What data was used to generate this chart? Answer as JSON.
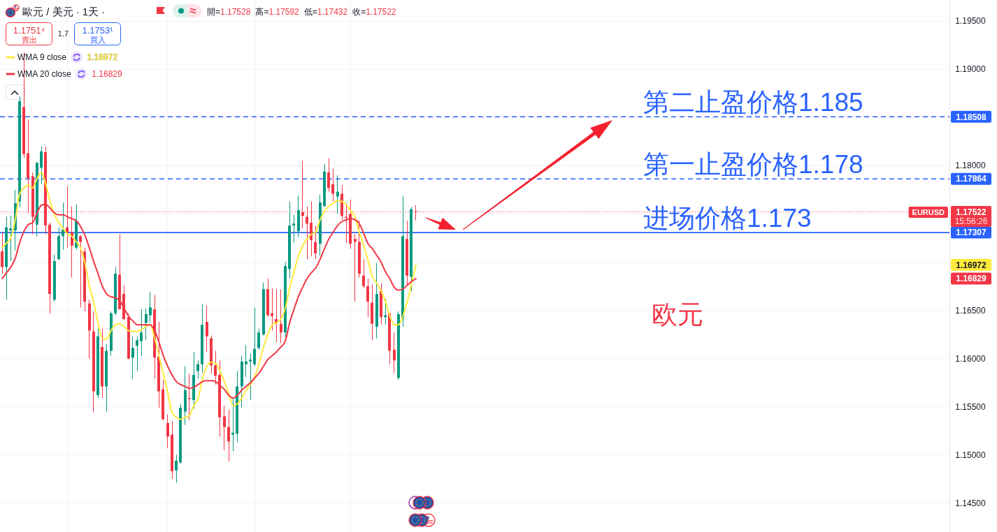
{
  "chart_data": {
    "type": "candlestick",
    "title": "歐元 / 美元 · 1天 ·",
    "categories": [
      null,
      null,
      null,
      null,
      null,
      null,
      null,
      null,
      null,
      null,
      null,
      null,
      null,
      null,
      null,
      null,
      null,
      null,
      null,
      null,
      null,
      null,
      null,
      null,
      null,
      null,
      null,
      null,
      null,
      null,
      null,
      null,
      null,
      null,
      null,
      null,
      null,
      null,
      null,
      null,
      null,
      null,
      null,
      null,
      null,
      null,
      null,
      null,
      null,
      null,
      null,
      null,
      null,
      null,
      null,
      null,
      null,
      null,
      null,
      null,
      null,
      null,
      null,
      null,
      null,
      null,
      null,
      null,
      null,
      null,
      null,
      null,
      null,
      null,
      null,
      null,
      null,
      null,
      null,
      null,
      null,
      null,
      null,
      null,
      null,
      null,
      null,
      null,
      null,
      null,
      null,
      null,
      null,
      null,
      null,
      null,
      null,
      null,
      null,
      null,
      null,
      null,
      null,
      null,
      null,
      null,
      null,
      null,
      null,
      null,
      null,
      null,
      null,
      null,
      null,
      null,
      null,
      null,
      null,
      null,
      null,
      null,
      null,
      null,
      null,
      null,
      null,
      null,
      null,
      null,
      null,
      null,
      null,
      null,
      null,
      null,
      null,
      null,
      null,
      null,
      null,
      null,
      null,
      null,
      null,
      null,
      null,
      null,
      null,
      null,
      null,
      null,
      null,
      null,
      null,
      null,
      null,
      null,
      null,
      null,
      null,
      null,
      null,
      null,
      null,
      null,
      null,
      null,
      null,
      null,
      null,
      null,
      null,
      null,
      null,
      null,
      null,
      null,
      null,
      null,
      null,
      null,
      null,
      null,
      null,
      null,
      null,
      null,
      null,
      null,
      null,
      null,
      null,
      null,
      null,
      null,
      null,
      null,
      null,
      null,
      null,
      null,
      null,
      null,
      null,
      null,
      null,
      null,
      null,
      null,
      null,
      null,
      null,
      null,
      null,
      null,
      null,
      null
    ],
    "ohlc": [
      [
        1.1711,
        1.1731,
        1.1688,
        1.1695
      ],
      [
        1.1695,
        1.1747,
        1.1661,
        1.1736
      ],
      [
        1.1733,
        1.1748,
        1.1701,
        1.1735
      ],
      [
        1.1733,
        1.1775,
        1.1712,
        1.1761
      ],
      [
        1.1763,
        1.1872,
        1.1757,
        1.1867
      ],
      [
        1.1861,
        1.1918,
        1.1808,
        1.1812
      ],
      [
        1.1813,
        1.1848,
        1.1751,
        1.1787
      ],
      [
        1.1789,
        1.1793,
        1.1729,
        1.1747
      ],
      [
        1.1739,
        1.1804,
        1.1727,
        1.1803
      ],
      [
        1.1798,
        1.182,
        1.1781,
        1.1815
      ],
      [
        1.1814,
        1.182,
        1.1729,
        1.1738
      ],
      [
        1.1739,
        1.1741,
        1.1647,
        1.1667
      ],
      [
        1.1661,
        1.1708,
        1.1659,
        1.1701
      ],
      [
        1.1703,
        1.1736,
        1.1702,
        1.1727
      ],
      [
        1.1727,
        1.1762,
        1.1713,
        1.1734
      ],
      [
        1.1736,
        1.1779,
        1.1715,
        1.1731
      ],
      [
        1.1731,
        1.1758,
        1.1684,
        1.1717
      ],
      [
        1.1715,
        1.176,
        1.1713,
        1.1743
      ],
      [
        1.1727,
        1.1728,
        1.1653,
        1.1721
      ],
      [
        1.1711,
        1.1715,
        1.1649,
        1.1659
      ],
      [
        1.1657,
        1.1661,
        1.16,
        1.1629
      ],
      [
        1.1628,
        1.1649,
        1.1544,
        1.1566
      ],
      [
        1.1562,
        1.1631,
        1.1559,
        1.1623
      ],
      [
        1.1612,
        1.1631,
        1.1559,
        1.1571
      ],
      [
        1.1571,
        1.1615,
        1.1545,
        1.1608
      ],
      [
        1.1608,
        1.1649,
        1.1603,
        1.1647
      ],
      [
        1.1647,
        1.1695,
        1.1645,
        1.1688
      ],
      [
        1.1687,
        1.1729,
        1.1651,
        1.1651
      ],
      [
        1.1667,
        1.1676,
        1.164,
        1.1641
      ],
      [
        1.1643,
        1.1647,
        1.1599,
        1.16
      ],
      [
        1.1601,
        1.1623,
        1.1579,
        1.1611
      ],
      [
        1.1613,
        1.1623,
        1.1587,
        1.1619
      ],
      [
        1.1618,
        1.1651,
        1.1603,
        1.1627
      ],
      [
        1.1637,
        1.1652,
        1.1619,
        1.1646
      ],
      [
        1.1645,
        1.1669,
        1.1637,
        1.1653
      ],
      [
        1.1651,
        1.1666,
        1.1579,
        1.1601
      ],
      [
        1.1602,
        1.1638,
        1.1549,
        1.1566
      ],
      [
        1.1568,
        1.1578,
        1.1536,
        1.1537
      ],
      [
        1.1533,
        1.1542,
        1.1507,
        1.1519
      ],
      [
        1.1521,
        1.1535,
        1.1475,
        1.1483
      ],
      [
        1.1484,
        1.15,
        1.1471,
        1.1494
      ],
      [
        1.1492,
        1.1553,
        1.1491,
        1.1549
      ],
      [
        1.1545,
        1.1592,
        1.1531,
        1.1567
      ],
      [
        1.1559,
        1.1584,
        1.1536,
        1.1558
      ],
      [
        1.1557,
        1.1607,
        1.1548,
        1.1583
      ],
      [
        1.1587,
        1.1598,
        1.1579,
        1.1594
      ],
      [
        1.1594,
        1.1657,
        1.1585,
        1.1635
      ],
      [
        1.1638,
        1.1655,
        1.1607,
        1.1623
      ],
      [
        1.1621,
        1.1624,
        1.1584,
        1.1593
      ],
      [
        1.1593,
        1.1608,
        1.1573,
        1.1582
      ],
      [
        1.1583,
        1.1598,
        1.1519,
        1.1539
      ],
      [
        1.154,
        1.1551,
        1.1505,
        1.1529
      ],
      [
        1.1529,
        1.1547,
        1.1493,
        1.1514
      ],
      [
        1.1521,
        1.1559,
        1.1504,
        1.1523
      ],
      [
        1.1522,
        1.1587,
        1.1513,
        1.1571
      ],
      [
        1.1571,
        1.1603,
        1.1549,
        1.1597
      ],
      [
        1.1594,
        1.1614,
        1.1581,
        1.1597
      ],
      [
        1.1597,
        1.1605,
        1.1557,
        1.1599
      ],
      [
        1.1594,
        1.1653,
        1.1592,
        1.161
      ],
      [
        1.1611,
        1.1631,
        1.1609,
        1.1627
      ],
      [
        1.1625,
        1.1679,
        1.1624,
        1.1672
      ],
      [
        1.1672,
        1.1683,
        1.1643,
        1.1645
      ],
      [
        1.1647,
        1.1673,
        1.1629,
        1.1644
      ],
      [
        1.1641,
        1.1672,
        1.1617,
        1.1637
      ],
      [
        1.1636,
        1.1672,
        1.1616,
        1.1627
      ],
      [
        1.1627,
        1.17,
        1.1622,
        1.1696
      ],
      [
        1.1693,
        1.1763,
        1.1683,
        1.1738
      ],
      [
        1.1738,
        1.1749,
        1.172,
        1.174
      ],
      [
        1.1732,
        1.1769,
        1.1726,
        1.1754
      ],
      [
        1.1752,
        1.1805,
        1.1735,
        1.1748
      ],
      [
        1.1747,
        1.1758,
        1.1703,
        1.174
      ],
      [
        1.1741,
        1.1763,
        1.1706,
        1.1723
      ],
      [
        1.1721,
        1.1738,
        1.1703,
        1.1709
      ],
      [
        1.1719,
        1.177,
        1.1707,
        1.1762
      ],
      [
        1.1758,
        1.1802,
        1.1758,
        1.1794
      ],
      [
        1.1793,
        1.1808,
        1.1773,
        1.1777
      ],
      [
        1.1781,
        1.1797,
        1.1763,
        1.1771
      ],
      [
        1.1768,
        1.179,
        1.175,
        1.1773
      ],
      [
        1.1771,
        1.178,
        1.1744,
        1.1748
      ],
      [
        1.1747,
        1.176,
        1.172,
        1.1746
      ],
      [
        1.175,
        1.1765,
        1.1714,
        1.1719
      ],
      [
        1.1724,
        1.1729,
        1.1659,
        1.1721
      ],
      [
        1.1721,
        1.1743,
        1.1684,
        1.1688
      ],
      [
        1.1686,
        1.1703,
        1.1673,
        1.1675
      ],
      [
        1.1675,
        1.1683,
        1.1643,
        1.1659
      ],
      [
        1.1658,
        1.1677,
        1.1619,
        1.1636
      ],
      [
        1.1633,
        1.1699,
        1.1621,
        1.1667
      ],
      [
        1.167,
        1.1678,
        1.1635,
        1.1643
      ],
      [
        1.1643,
        1.1662,
        1.1635,
        1.1645
      ],
      [
        1.1647,
        1.1647,
        1.1594,
        1.1608
      ],
      [
        1.1609,
        1.1627,
        1.1585,
        1.1598
      ],
      [
        1.158,
        1.1649,
        1.1578,
        1.1646
      ],
      [
        1.1642,
        1.1769,
        1.1633,
        1.1727
      ],
      [
        1.1724,
        1.1743,
        1.1677,
        1.1686
      ],
      [
        1.1685,
        1.1757,
        1.167,
        1.1755
      ],
      [
        1.17528,
        1.17592,
        1.17432,
        1.17522
      ],
      null,
      null,
      null,
      null,
      null,
      null,
      null,
      null,
      null,
      null,
      null,
      null,
      null,
      null,
      null,
      null,
      null,
      null,
      null,
      null,
      null,
      null,
      null,
      null,
      null,
      null,
      null,
      null,
      null,
      null,
      null,
      null,
      null,
      null,
      null,
      null,
      null,
      null,
      null,
      null,
      null,
      null,
      null,
      null,
      null,
      null,
      null,
      null,
      null,
      null,
      null,
      null,
      null,
      null,
      null,
      null,
      null,
      null,
      null,
      null,
      null,
      null,
      null,
      null,
      null,
      null,
      null,
      null,
      null,
      null,
      null,
      null,
      null,
      null,
      null,
      null,
      null,
      null,
      null,
      null,
      null,
      null,
      null,
      null,
      null,
      null,
      null,
      null,
      null,
      null,
      null,
      null,
      null,
      null,
      null,
      null,
      null,
      null,
      null,
      null,
      null,
      null,
      null,
      null,
      null,
      null,
      null,
      null,
      null,
      null,
      null,
      null,
      null,
      null,
      null,
      null,
      null,
      null,
      null,
      null,
      null,
      null
    ],
    "colors": [
      "#f23645",
      "#089981",
      "#089981",
      "#089981",
      "#089981",
      "#f23645",
      "#f23645",
      "#f23645",
      "#089981",
      "#089981",
      "#f23645",
      "#f23645",
      "#089981",
      "#089981",
      "#089981",
      "#f23645",
      "#f23645",
      "#089981",
      "#f23645",
      "#f23645",
      "#f23645",
      "#f23645",
      "#089981",
      "#f23645",
      "#089981",
      "#089981",
      "#089981",
      "#f23645",
      "#f23645",
      "#f23645",
      "#089981",
      "#089981",
      "#089981",
      "#089981",
      "#089981",
      "#f23645",
      "#f23645",
      "#f23645",
      "#f23645",
      "#f23645",
      "#089981",
      "#089981",
      "#089981",
      "#f23645",
      "#089981",
      "#089981",
      "#089981",
      "#f23645",
      "#f23645",
      "#f23645",
      "#f23645",
      "#f23645",
      "#f23645",
      "#089981",
      "#089981",
      "#089981",
      "#089981",
      "#089981",
      "#089981",
      "#089981",
      "#089981",
      "#f23645",
      "#f23645",
      "#f23645",
      "#f23645",
      "#089981",
      "#089981",
      "#089981",
      "#089981",
      "#f23645",
      "#f23645",
      "#f23645",
      "#f23645",
      "#089981",
      "#089981",
      "#f23645",
      "#f23645",
      "#089981",
      "#f23645",
      "#f23645",
      "#f23645",
      "#f23645",
      "#f23645",
      "#f23645",
      "#f23645",
      "#f23645",
      "#089981",
      "#f23645",
      "#089981",
      "#f23645",
      "#f23645",
      "#089981",
      "#089981",
      "#f23645",
      "#089981",
      "#f23645",
      null,
      null,
      null,
      null,
      null,
      null,
      null,
      null,
      null,
      null,
      null,
      null,
      null,
      null,
      null,
      null,
      null,
      null,
      null,
      null,
      null,
      null,
      null,
      null,
      null,
      null,
      null,
      null,
      null,
      null,
      null,
      null,
      null,
      null,
      null,
      null,
      null,
      null,
      null,
      null,
      null,
      null,
      null,
      null,
      null,
      null,
      null,
      null,
      null,
      null,
      null,
      null,
      null,
      null,
      null,
      null,
      null,
      null,
      null,
      null,
      null,
      null,
      null,
      null,
      null,
      null,
      null,
      null,
      null,
      null,
      null,
      null,
      null,
      null,
      null,
      null,
      null,
      null,
      null,
      null,
      null,
      null,
      null,
      null,
      null,
      null,
      null,
      null,
      null,
      null,
      null,
      null,
      null,
      null,
      null,
      null,
      null,
      null,
      null,
      null,
      null,
      null,
      null,
      null,
      null,
      null,
      null,
      null,
      null,
      null,
      null,
      null,
      null,
      null,
      null,
      null,
      null,
      null,
      null,
      null,
      null,
      null
    ],
    "series": [
      {
        "name": "WMA 9 close",
        "type": "line",
        "color": "#ffeb3b",
        "values": [
          1.1715,
          1.172,
          1.1725,
          1.1744,
          1.1771,
          1.1777,
          1.178,
          1.1777,
          1.1787,
          1.1793,
          1.1781,
          1.1763,
          1.1749,
          1.1741,
          1.1735,
          1.1729,
          1.1727,
          1.1721,
          1.1715,
          1.1699,
          1.1675,
          1.1659,
          1.1637,
          1.1621,
          1.162,
          1.1629,
          1.1635,
          1.1636,
          1.1633,
          1.1629,
          1.1628,
          1.1628,
          1.163,
          1.1633,
          1.1635,
          1.1621,
          1.1603,
          1.1584,
          1.1565,
          1.1544,
          1.1539,
          1.1537,
          1.1539,
          1.1541,
          1.1551,
          1.1559,
          1.1579,
          1.1592,
          1.1596,
          1.1595,
          1.1587,
          1.1576,
          1.1564,
          1.1551,
          1.1553,
          1.1559,
          1.1567,
          1.1573,
          1.1581,
          1.1595,
          1.1612,
          1.1625,
          1.1635,
          1.1637,
          1.1641,
          1.1652,
          1.1673,
          1.169,
          1.1706,
          1.1717,
          1.1724,
          1.1729,
          1.1731,
          1.1744,
          1.1753,
          1.1758,
          1.1761,
          1.1764,
          1.1763,
          1.176,
          1.1753,
          1.1747,
          1.1731,
          1.1717,
          1.1702,
          1.1685,
          1.1678,
          1.167,
          1.1659,
          1.1644,
          1.1635,
          1.1635,
          1.1644,
          1.1659,
          1.1678,
          1.16972,
          null,
          null,
          null,
          null,
          null,
          null,
          null,
          null,
          null,
          null,
          null,
          null,
          null,
          null,
          null,
          null,
          null,
          null,
          null,
          null,
          null,
          null,
          null,
          null,
          null,
          null,
          null,
          null,
          null,
          null,
          null,
          null,
          null,
          null,
          null,
          null,
          null,
          null,
          null,
          null,
          null,
          null,
          null,
          null,
          null,
          null,
          null,
          null,
          null,
          null,
          null,
          null,
          null,
          null,
          null,
          null,
          null,
          null,
          null,
          null,
          null,
          null,
          null,
          null,
          null,
          null,
          null,
          null,
          null,
          null,
          null,
          null,
          null,
          null,
          null,
          null,
          null,
          null,
          null,
          null,
          null,
          null,
          null,
          null,
          null,
          null,
          null,
          null,
          null,
          null,
          null,
          null,
          null,
          null,
          null,
          null,
          null,
          null,
          null,
          null,
          null,
          null,
          null,
          null,
          null,
          null,
          null,
          null,
          null,
          null,
          null,
          null,
          null,
          null,
          null,
          null,
          null,
          null,
          null,
          null,
          null,
          null
        ]
      },
      {
        "name": "WMA 20 close",
        "type": "line",
        "color": "#f23645",
        "values": [
          1.1683,
          1.1689,
          1.1695,
          1.1704,
          1.172,
          1.1732,
          1.1739,
          1.1741,
          1.1751,
          1.1759,
          1.176,
          1.1756,
          1.1751,
          1.1749,
          1.1749,
          1.1747,
          1.1745,
          1.1743,
          1.1737,
          1.1728,
          1.1715,
          1.1701,
          1.1688,
          1.1675,
          1.1667,
          1.1664,
          1.1663,
          1.166,
          1.1652,
          1.1644,
          1.1639,
          1.1635,
          1.1635,
          1.1635,
          1.1635,
          1.1629,
          1.1617,
          1.1603,
          1.1592,
          1.1583,
          1.1576,
          1.1573,
          1.1571,
          1.1569,
          1.157,
          1.1573,
          1.1576,
          1.1577,
          1.1577,
          1.1576,
          1.1572,
          1.1568,
          1.1562,
          1.1559,
          1.1562,
          1.1567,
          1.1571,
          1.1575,
          1.158,
          1.1585,
          1.1592,
          1.1599,
          1.1603,
          1.1607,
          1.1612,
          1.1618,
          1.1637,
          1.1651,
          1.1664,
          1.1674,
          1.1683,
          1.1689,
          1.1694,
          1.1703,
          1.1714,
          1.1724,
          1.1731,
          1.1738,
          1.1742,
          1.1744,
          1.1745,
          1.1744,
          1.174,
          1.173,
          1.1719,
          1.1714,
          1.1707,
          1.17,
          1.169,
          1.1683,
          1.1674,
          1.1671,
          1.1672,
          1.1676,
          1.168,
          1.16829,
          null,
          null,
          null,
          null,
          null,
          null,
          null,
          null,
          null,
          null,
          null,
          null,
          null,
          null,
          null,
          null,
          null,
          null,
          null,
          null,
          null,
          null,
          null,
          null,
          null,
          null,
          null,
          null,
          null,
          null,
          null,
          null,
          null,
          null,
          null,
          null,
          null,
          null,
          null,
          null,
          null,
          null,
          null,
          null,
          null,
          null,
          null,
          null,
          null,
          null,
          null,
          null,
          null,
          null,
          null,
          null,
          null,
          null,
          null,
          null,
          null,
          null,
          null,
          null,
          null,
          null,
          null,
          null,
          null,
          null,
          null,
          null,
          null,
          null,
          null,
          null,
          null,
          null,
          null,
          null,
          null,
          null,
          null,
          null,
          null,
          null,
          null,
          null,
          null,
          null,
          null,
          null,
          null,
          null,
          null,
          null,
          null,
          null,
          null,
          null,
          null,
          null,
          null,
          null,
          null,
          null,
          null,
          null,
          null,
          null,
          null,
          null,
          null,
          null,
          null,
          null,
          null,
          null,
          null,
          null,
          null,
          null
        ]
      }
    ],
    "ylim": [
      1.142,
      1.1972
    ],
    "yticks": [
      {
        "value": 1.145,
        "label": "1.14500"
      },
      {
        "value": 1.15,
        "label": "1.15000"
      },
      {
        "value": 1.155,
        "label": "1.15500"
      },
      {
        "value": 1.16,
        "label": "1.16000"
      },
      {
        "value": 1.165,
        "label": "1.16500"
      },
      {
        "value": 1.17,
        "label": null
      },
      {
        "value": 1.175,
        "label": null
      },
      {
        "value": 1.18,
        "label": "1.18000"
      },
      {
        "value": 1.185,
        "label": null
      },
      {
        "value": 1.19,
        "label": "1.19000"
      },
      {
        "value": 1.195,
        "label": "1.19500"
      }
    ],
    "grid": true,
    "legend": "top left",
    "ref_lines": [
      {
        "axis": "y",
        "value": 1.18508,
        "label": "第二止盈价格1.185",
        "color": "#2962ff",
        "line_style": "dashed"
      },
      {
        "axis": "y",
        "value": 1.17864,
        "label": "第一止盈价格1.178",
        "color": "#2962ff",
        "line_style": "dashed"
      },
      {
        "axis": "y",
        "value": 1.17307,
        "label": "进场价格1.173",
        "color": "#2962ff",
        "line_style": "solid"
      },
      {
        "axis": "y",
        "value": 1.17522,
        "label": "EURUSD",
        "color": "#f23645",
        "line_style": "dotted"
      }
    ],
    "annotations": [
      "開=1.17528",
      "高=1.17592",
      "低=1.17432",
      "收=1.17522",
      "1.1751⁴",
      "賣出",
      "1.7",
      "1.1753¹",
      "買入",
      "欧元",
      "1.18508",
      "1.17864",
      "1.17307",
      "1.17522",
      "15:56:26",
      "1.16972",
      "1.16829"
    ]
  }
}
